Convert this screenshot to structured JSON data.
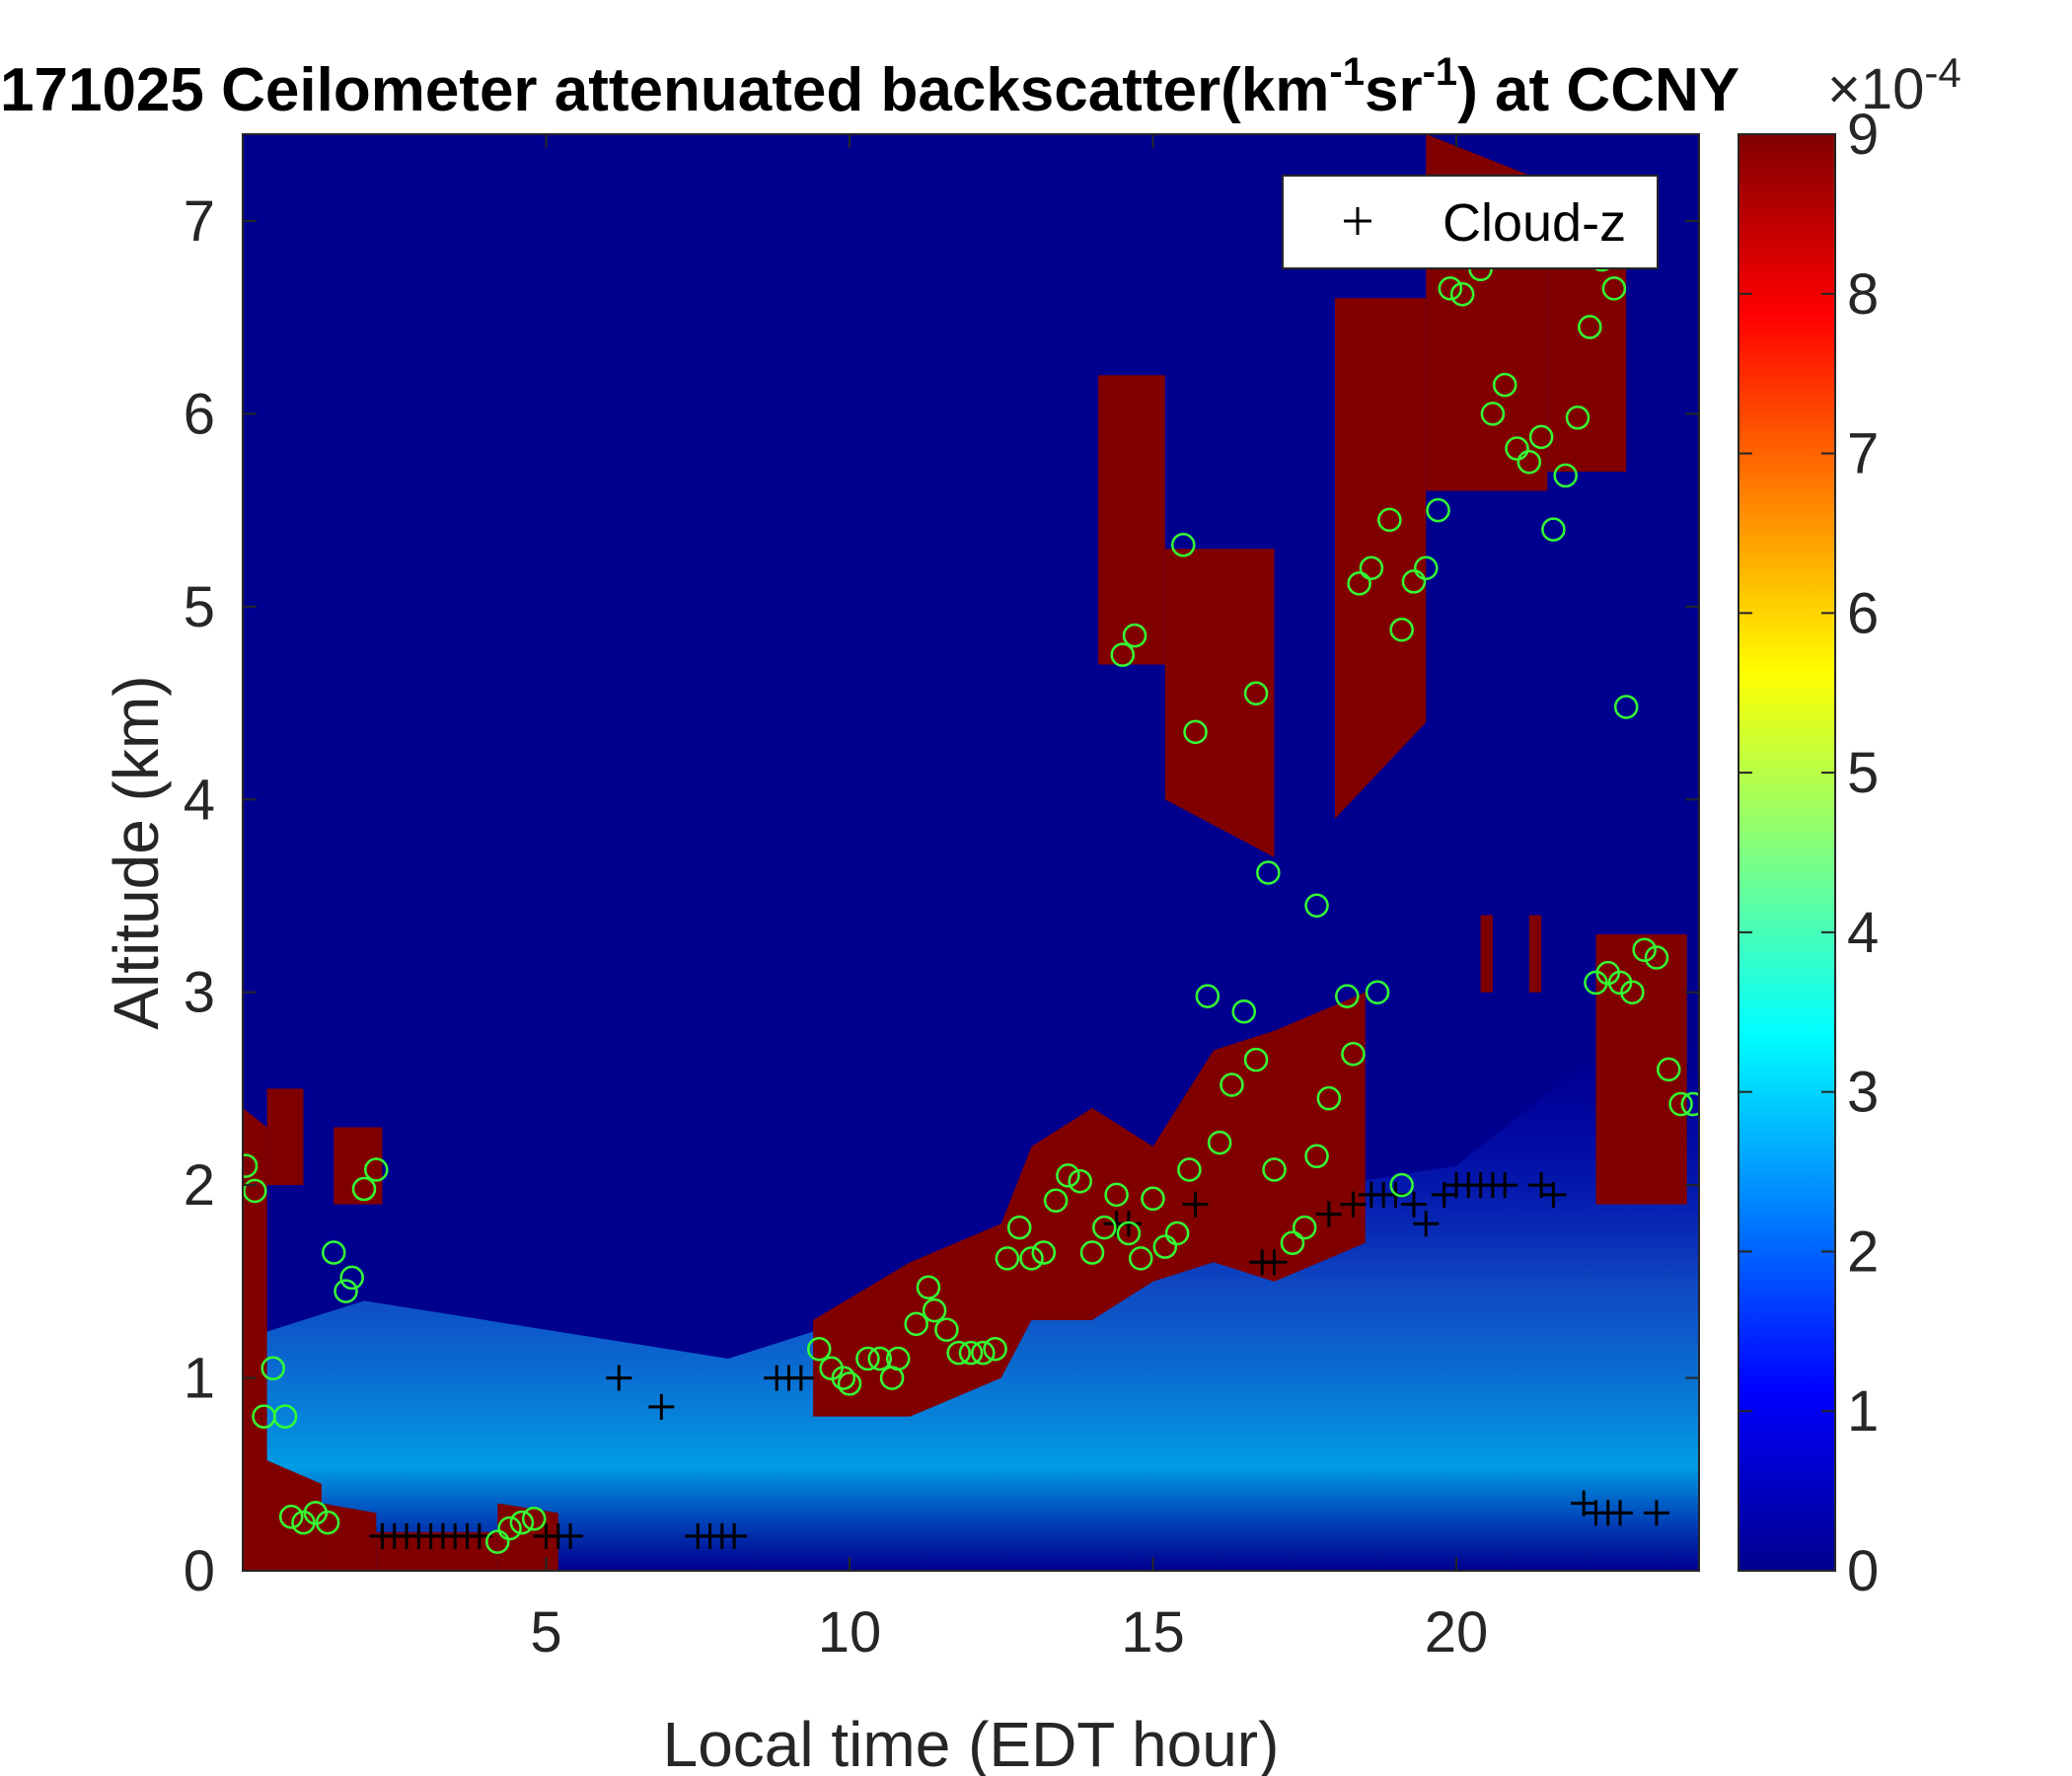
{
  "chart_data": {
    "type": "heatmap",
    "title": {
      "main": "171025 Ceilometer attenuated backscatter(km",
      "sup1": "-1",
      "mid": "sr",
      "sup2": "-1",
      "end": ") at CCNY"
    },
    "xlabel": "Local time (EDT hour)",
    "ylabel": "Altitude (km)",
    "xlim": [
      0,
      24
    ],
    "ylim": [
      0,
      7.45
    ],
    "xticks": [
      5,
      10,
      15,
      20
    ],
    "yticks": [
      0,
      1,
      2,
      3,
      4,
      5,
      6,
      7
    ],
    "colorbar": {
      "colormap": "jet",
      "range": [
        0,
        9
      ],
      "ticks": [
        0,
        1,
        2,
        3,
        4,
        5,
        6,
        7,
        8,
        9
      ],
      "exponent_base": "×10",
      "exponent": "-4"
    },
    "legend": {
      "location": "top-right",
      "entries": [
        {
          "marker": "+",
          "label": "Cloud-z"
        }
      ]
    },
    "background_color": "#00008f",
    "saturated_color": "#800000",
    "saturated_layers": [
      {
        "x": [
          0,
          0.4
        ],
        "base": [
          0,
          0
        ],
        "top": [
          2.4,
          2.3
        ]
      },
      {
        "x": [
          0.4,
          1.0
        ],
        "base": [
          2.0,
          2.0
        ],
        "top": [
          2.5,
          2.5
        ]
      },
      {
        "x": [
          1.5,
          2.3
        ],
        "base": [
          1.9,
          1.9
        ],
        "top": [
          2.3,
          2.3
        ]
      },
      {
        "x": [
          0.2,
          1.3
        ],
        "base": [
          0,
          0
        ],
        "top": [
          0.6,
          0.45
        ]
      },
      {
        "x": [
          1.3,
          2.2
        ],
        "base": [
          0,
          0
        ],
        "top": [
          0.35,
          0.3
        ]
      },
      {
        "x": [
          2.2,
          4.2
        ],
        "base": [
          0,
          0
        ],
        "top": [
          0.2,
          0.2
        ]
      },
      {
        "x": [
          4.2,
          5.2
        ],
        "base": [
          0,
          0
        ],
        "top": [
          0.35,
          0.3
        ]
      },
      {
        "x": [
          9.4,
          11.0,
          12.5,
          13.0,
          14.0,
          15.0,
          16.0,
          17.0,
          18.5
        ],
        "base": [
          0.8,
          0.8,
          1.0,
          1.3,
          1.3,
          1.5,
          1.6,
          1.5,
          1.7
        ],
        "top": [
          1.3,
          1.6,
          1.8,
          2.2,
          2.4,
          2.2,
          2.7,
          2.8,
          3.0
        ]
      },
      {
        "x": [
          22.3,
          23.8
        ],
        "base": [
          1.9,
          1.9
        ],
        "top": [
          3.3,
          3.3
        ]
      },
      {
        "x": [
          14.1,
          15.2
        ],
        "base": [
          4.7,
          4.7
        ],
        "top": [
          6.2,
          6.2
        ]
      },
      {
        "x": [
          15.2,
          17.0
        ],
        "base": [
          4.0,
          3.7
        ],
        "top": [
          5.3,
          5.3
        ]
      },
      {
        "x": [
          18.0,
          19.5
        ],
        "base": [
          3.9,
          4.4
        ],
        "top": [
          6.6,
          6.6
        ]
      },
      {
        "x": [
          19.5,
          21.5
        ],
        "base": [
          5.6,
          5.6
        ],
        "top": [
          7.45,
          7.2
        ]
      },
      {
        "x": [
          21.5,
          22.8
        ],
        "base": [
          5.7,
          5.7
        ],
        "top": [
          7.1,
          7.1
        ]
      },
      {
        "x": [
          20.4,
          20.6
        ],
        "base": [
          3.0,
          3.0
        ],
        "top": [
          3.4,
          3.4
        ]
      },
      {
        "x": [
          21.2,
          21.4
        ],
        "base": [
          3.0,
          3.0
        ],
        "top": [
          3.4,
          3.4
        ]
      }
    ],
    "cloud_z_points": [
      [
        2.3,
        0.18
      ],
      [
        2.5,
        0.18
      ],
      [
        2.7,
        0.18
      ],
      [
        2.9,
        0.18
      ],
      [
        3.1,
        0.18
      ],
      [
        3.3,
        0.18
      ],
      [
        3.5,
        0.18
      ],
      [
        3.7,
        0.18
      ],
      [
        3.9,
        0.18
      ],
      [
        5.0,
        0.18
      ],
      [
        5.2,
        0.18
      ],
      [
        5.4,
        0.18
      ],
      [
        6.2,
        1.0
      ],
      [
        6.9,
        0.85
      ],
      [
        7.5,
        0.18
      ],
      [
        7.7,
        0.18
      ],
      [
        7.9,
        0.18
      ],
      [
        8.1,
        0.18
      ],
      [
        8.8,
        1.0
      ],
      [
        9.0,
        1.0
      ],
      [
        9.2,
        1.0
      ],
      [
        14.4,
        1.8
      ],
      [
        14.6,
        1.8
      ],
      [
        15.7,
        1.9
      ],
      [
        16.8,
        1.6
      ],
      [
        17.0,
        1.6
      ],
      [
        17.9,
        1.85
      ],
      [
        18.3,
        1.9
      ],
      [
        18.6,
        1.95
      ],
      [
        18.8,
        1.95
      ],
      [
        19.0,
        1.95
      ],
      [
        19.3,
        1.9
      ],
      [
        19.5,
        1.8
      ],
      [
        19.8,
        1.95
      ],
      [
        20.0,
        2.0
      ],
      [
        20.2,
        2.0
      ],
      [
        20.4,
        2.0
      ],
      [
        20.6,
        2.0
      ],
      [
        20.8,
        2.0
      ],
      [
        21.4,
        2.0
      ],
      [
        21.6,
        1.95
      ],
      [
        22.1,
        0.35
      ],
      [
        22.3,
        0.3
      ],
      [
        22.5,
        0.3
      ],
      [
        22.7,
        0.3
      ],
      [
        23.3,
        0.3
      ]
    ],
    "green_circles": [
      [
        0.05,
        2.1
      ],
      [
        0.2,
        1.97
      ],
      [
        0.35,
        0.8
      ],
      [
        0.5,
        1.05
      ],
      [
        0.7,
        0.8
      ],
      [
        0.8,
        0.28
      ],
      [
        1.0,
        0.25
      ],
      [
        1.2,
        0.3
      ],
      [
        1.4,
        0.25
      ],
      [
        1.5,
        1.65
      ],
      [
        1.7,
        1.45
      ],
      [
        1.8,
        1.52
      ],
      [
        2.0,
        1.98
      ],
      [
        2.2,
        2.08
      ],
      [
        4.2,
        0.15
      ],
      [
        4.4,
        0.22
      ],
      [
        4.6,
        0.25
      ],
      [
        4.8,
        0.27
      ],
      [
        9.5,
        1.15
      ],
      [
        9.7,
        1.05
      ],
      [
        9.9,
        1.0
      ],
      [
        10.0,
        0.97
      ],
      [
        10.3,
        1.1
      ],
      [
        10.5,
        1.1
      ],
      [
        10.7,
        1.0
      ],
      [
        10.8,
        1.1
      ],
      [
        11.1,
        1.28
      ],
      [
        11.3,
        1.47
      ],
      [
        11.4,
        1.35
      ],
      [
        11.6,
        1.25
      ],
      [
        11.8,
        1.13
      ],
      [
        12.0,
        1.13
      ],
      [
        12.2,
        1.13
      ],
      [
        12.4,
        1.15
      ],
      [
        12.6,
        1.62
      ],
      [
        12.8,
        1.78
      ],
      [
        13.0,
        1.62
      ],
      [
        13.2,
        1.65
      ],
      [
        13.4,
        1.92
      ],
      [
        13.6,
        2.05
      ],
      [
        13.8,
        2.02
      ],
      [
        14.0,
        1.65
      ],
      [
        14.2,
        1.78
      ],
      [
        14.4,
        1.95
      ],
      [
        14.6,
        1.75
      ],
      [
        14.8,
        1.62
      ],
      [
        15.0,
        1.93
      ],
      [
        15.2,
        1.68
      ],
      [
        15.4,
        1.75
      ],
      [
        15.6,
        2.08
      ],
      [
        15.9,
        2.98
      ],
      [
        16.1,
        2.22
      ],
      [
        16.3,
        2.52
      ],
      [
        16.5,
        2.9
      ],
      [
        16.7,
        2.65
      ],
      [
        17.0,
        2.08
      ],
      [
        17.3,
        1.7
      ],
      [
        17.5,
        1.78
      ],
      [
        17.7,
        2.15
      ],
      [
        17.9,
        2.45
      ],
      [
        18.2,
        2.98
      ],
      [
        18.3,
        2.68
      ],
      [
        18.7,
        3.0
      ],
      [
        19.1,
        2.0
      ],
      [
        14.5,
        4.75
      ],
      [
        14.7,
        4.85
      ],
      [
        15.5,
        5.32
      ],
      [
        15.7,
        4.35
      ],
      [
        16.7,
        4.55
      ],
      [
        16.9,
        3.62
      ],
      [
        17.7,
        3.45
      ],
      [
        18.4,
        5.12
      ],
      [
        18.6,
        5.2
      ],
      [
        18.9,
        5.45
      ],
      [
        19.1,
        4.88
      ],
      [
        19.3,
        5.13
      ],
      [
        19.5,
        5.2
      ],
      [
        19.7,
        5.5
      ],
      [
        19.9,
        6.65
      ],
      [
        20.1,
        6.62
      ],
      [
        20.4,
        6.75
      ],
      [
        20.6,
        6.0
      ],
      [
        20.8,
        6.15
      ],
      [
        21.0,
        5.82
      ],
      [
        21.2,
        5.75
      ],
      [
        21.4,
        5.88
      ],
      [
        21.6,
        5.4
      ],
      [
        21.8,
        5.68
      ],
      [
        22.0,
        5.98
      ],
      [
        22.2,
        6.45
      ],
      [
        22.4,
        6.8
      ],
      [
        22.6,
        6.65
      ],
      [
        22.8,
        4.48
      ],
      [
        22.3,
        3.05
      ],
      [
        22.5,
        3.1
      ],
      [
        22.7,
        3.05
      ],
      [
        22.9,
        3.0
      ],
      [
        23.1,
        3.22
      ],
      [
        23.3,
        3.18
      ],
      [
        23.5,
        2.6
      ],
      [
        23.7,
        2.42
      ],
      [
        23.9,
        2.42
      ]
    ]
  }
}
